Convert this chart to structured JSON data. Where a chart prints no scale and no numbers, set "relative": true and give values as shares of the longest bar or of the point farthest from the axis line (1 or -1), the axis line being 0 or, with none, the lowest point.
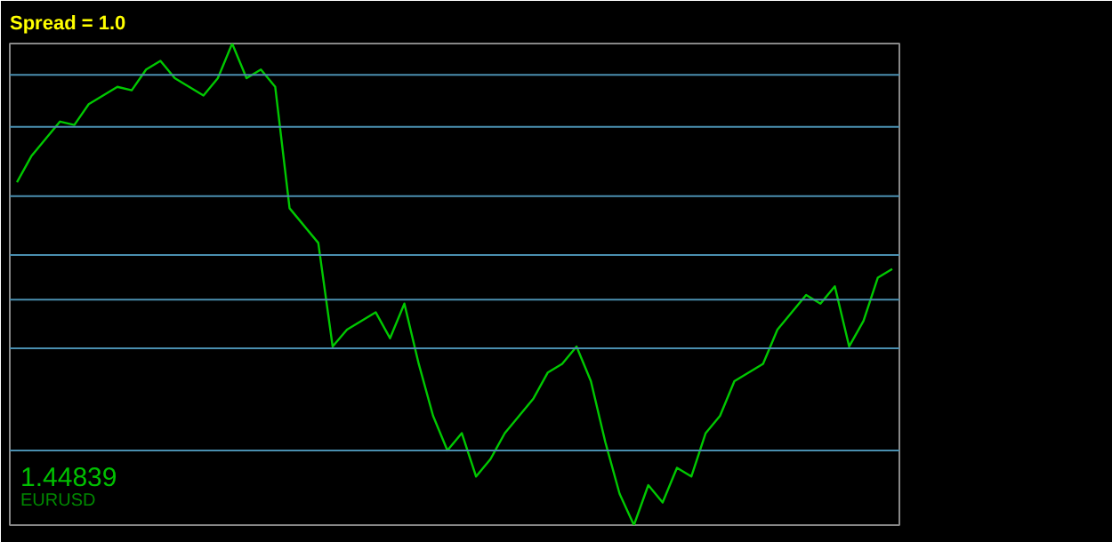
{
  "chart_data": {
    "type": "line",
    "title": "Spread = 1.0",
    "relative": true,
    "grid": false,
    "marker": "none",
    "line_style": "solid",
    "annotations": [
      "1.44839",
      "EURUSD"
    ],
    "categories": [
      null,
      null,
      null,
      null,
      null,
      null,
      null,
      null,
      null,
      null,
      null,
      null,
      null,
      null,
      null,
      null,
      null,
      null,
      null,
      null,
      null,
      null,
      null,
      null,
      null,
      null,
      null,
      null,
      null,
      null,
      null,
      null,
      null,
      null,
      null,
      null,
      null,
      null,
      null,
      null,
      null,
      null,
      null,
      null,
      null,
      null,
      null,
      null,
      null,
      null,
      null,
      null,
      null,
      null,
      null,
      null,
      null,
      null,
      null,
      null,
      null,
      null
    ],
    "series": [
      {
        "color": "#00c800",
        "values": [
          0.712,
          0.766,
          0.802,
          0.838,
          0.831,
          0.874,
          0.892,
          0.91,
          0.903,
          0.946,
          0.964,
          0.928,
          0.91,
          0.892,
          0.928,
          1,
          0.928,
          0.946,
          0.91,
          0.658,
          0.622,
          0.586,
          0.371,
          0.406,
          0.424,
          0.442,
          0.388,
          0.46,
          0.335,
          0.227,
          0.155,
          0.191,
          0.101,
          0.137,
          0.191,
          0.227,
          0.263,
          0.317,
          0.335,
          0.371,
          0.299,
          0.173,
          0.065,
          0,
          0.083,
          0.047,
          0.119,
          0.101,
          0.191,
          0.227,
          0.299,
          0.317,
          0.335,
          0.406,
          0.442,
          0.478,
          0.46,
          0.496,
          0.371,
          0.424,
          0.514,
          0.532
        ]
      }
    ],
    "ref_lines": [
      {
        "axis": "y",
        "value": 0.935,
        "color": "#4a8fb0"
      },
      {
        "axis": "y",
        "value": 0.827,
        "color": "#4a8fb0"
      },
      {
        "axis": "y",
        "value": 0.683,
        "color": "#4a8fb0"
      },
      {
        "axis": "y",
        "value": 0.561,
        "color": "#4a8fb0"
      },
      {
        "axis": "y",
        "value": 0.468,
        "color": "#4a8fb0"
      },
      {
        "axis": "y",
        "value": 0.367,
        "color": "#4a8fb0"
      },
      {
        "axis": "y",
        "value": 0.155,
        "color": "#4a8fb0"
      }
    ]
  }
}
